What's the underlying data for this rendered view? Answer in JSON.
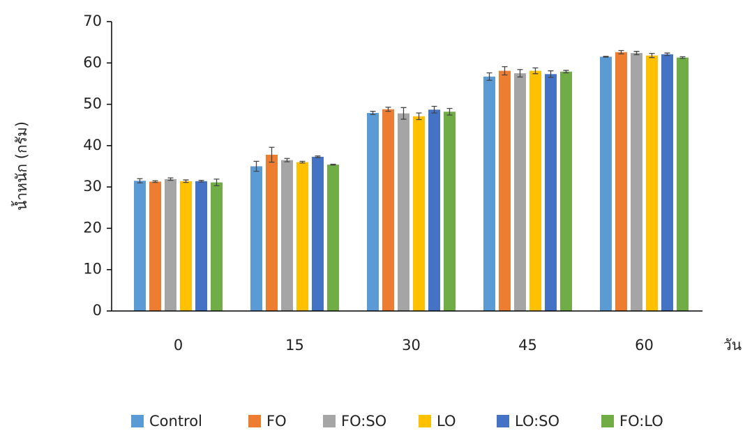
{
  "chart_data": {
    "type": "bar",
    "ylabel": "น้ำหนัก (กรัม)",
    "xlabel": "วัน",
    "categories": [
      "0",
      "15",
      "30",
      "45",
      "60"
    ],
    "series": [
      {
        "name": "Control",
        "color": "#5b9bd5",
        "values": [
          31.5,
          35.0,
          47.9,
          56.7,
          61.5
        ],
        "errors": [
          0.5,
          1.2,
          0.4,
          0.9,
          0.1
        ]
      },
      {
        "name": "FO",
        "color": "#ed7d31",
        "values": [
          31.3,
          37.8,
          48.8,
          58.1,
          62.6
        ],
        "errors": [
          0.2,
          1.8,
          0.5,
          1.0,
          0.4
        ]
      },
      {
        "name": "FO:SO",
        "color": "#a5a5a5",
        "values": [
          31.9,
          36.5,
          47.8,
          57.5,
          62.4
        ],
        "errors": [
          0.3,
          0.4,
          1.4,
          0.9,
          0.4
        ]
      },
      {
        "name": "LO",
        "color": "#ffc000",
        "values": [
          31.4,
          36.0,
          47.1,
          58.1,
          61.8
        ],
        "errors": [
          0.3,
          0.2,
          0.8,
          0.7,
          0.5
        ]
      },
      {
        "name": "LO:SO",
        "color": "#4472c4",
        "values": [
          31.4,
          37.3,
          48.7,
          57.3,
          62.1
        ],
        "errors": [
          0.2,
          0.2,
          0.8,
          0.8,
          0.3
        ]
      },
      {
        "name": "FO:LO",
        "color": "#70ad47",
        "values": [
          31.1,
          35.4,
          48.2,
          57.9,
          61.3
        ],
        "errors": [
          0.8,
          0.1,
          0.8,
          0.3,
          0.2
        ]
      }
    ],
    "ylim": [
      0,
      70
    ],
    "yticks": [
      0,
      10,
      20,
      30,
      40,
      50,
      60,
      70
    ],
    "grid": false,
    "legend": "bottom"
  }
}
